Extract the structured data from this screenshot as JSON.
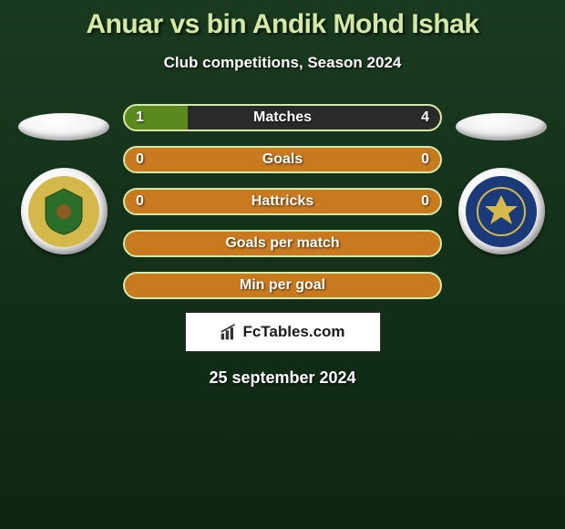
{
  "title": "Anuar vs bin Andik Mohd Ishak",
  "subtitle": "Club competitions, Season 2024",
  "date": "25 september 2024",
  "logo_text": "FcTables.com",
  "colors": {
    "title_color": "#d4e8a8",
    "bar_border": "#d4e8a8",
    "bar_bg_empty": "#c97a1f",
    "bar_fill_left": "#5a8a1f",
    "bar_fill_right": "#2a2a2a",
    "bg_top": "#1a3a1f",
    "bg_bottom": "#0d2612"
  },
  "player_left": {
    "oval_color": "#e8e8e8",
    "badge_outer": "#e8e8e8",
    "badge_inner": "#d4b94a",
    "badge_accent": "#2a6e2a"
  },
  "player_right": {
    "oval_color": "#dcdcdc",
    "badge_outer": "#e8e8e8",
    "badge_inner": "#1a3a7a",
    "badge_accent": "#d4b94a"
  },
  "stats": [
    {
      "label": "Matches",
      "left_val": "1",
      "right_val": "4",
      "left_pct": 20,
      "right_pct": 80,
      "show_vals": true
    },
    {
      "label": "Goals",
      "left_val": "0",
      "right_val": "0",
      "left_pct": 0,
      "right_pct": 0,
      "show_vals": true
    },
    {
      "label": "Hattricks",
      "left_val": "0",
      "right_val": "0",
      "left_pct": 0,
      "right_pct": 0,
      "show_vals": true
    },
    {
      "label": "Goals per match",
      "left_val": "",
      "right_val": "",
      "left_pct": 0,
      "right_pct": 0,
      "show_vals": false
    },
    {
      "label": "Min per goal",
      "left_val": "",
      "right_val": "",
      "left_pct": 0,
      "right_pct": 0,
      "show_vals": false
    }
  ]
}
